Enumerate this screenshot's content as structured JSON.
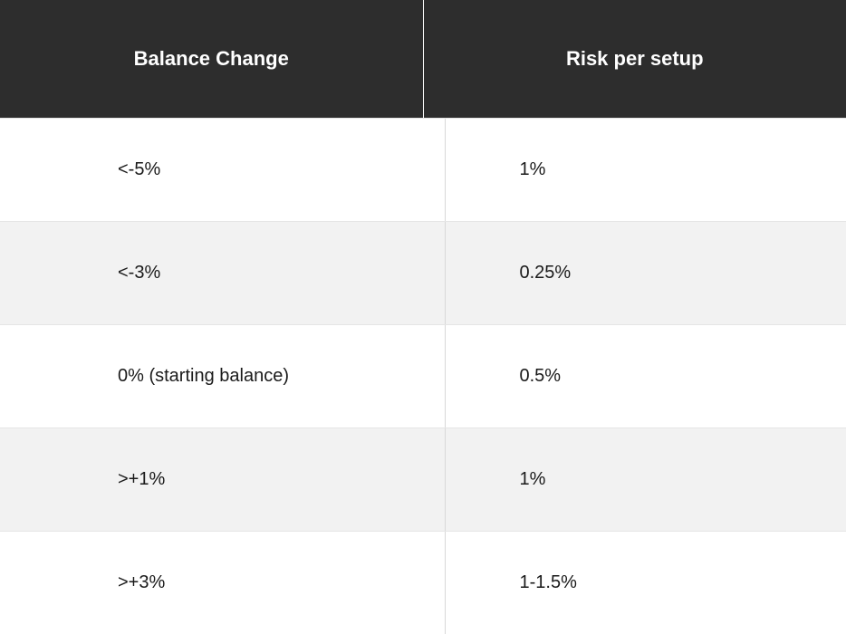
{
  "table": {
    "columns": [
      "Balance Change",
      "Risk per setup"
    ],
    "rows": [
      {
        "balance_change": "<-5%",
        "risk": "1%",
        "alt": false
      },
      {
        "balance_change": "<-3%",
        "risk": "0.25%",
        "alt": true
      },
      {
        "balance_change": "0% (starting balance)",
        "risk": "0.5%",
        "alt": false
      },
      {
        "balance_change": ">+1%",
        "risk": "1%",
        "alt": true
      },
      {
        "balance_change": ">+3%",
        "risk": "1-1.5%",
        "alt": false
      }
    ],
    "header_bg": "#2d2d2d",
    "header_text_color": "#ffffff",
    "row_bg": "#ffffff",
    "row_alt_bg": "#f2f2f2",
    "text_color": "#1a1a1a",
    "border_color": "#e5e5e5",
    "header_fontsize": 22,
    "cell_fontsize": 20
  }
}
